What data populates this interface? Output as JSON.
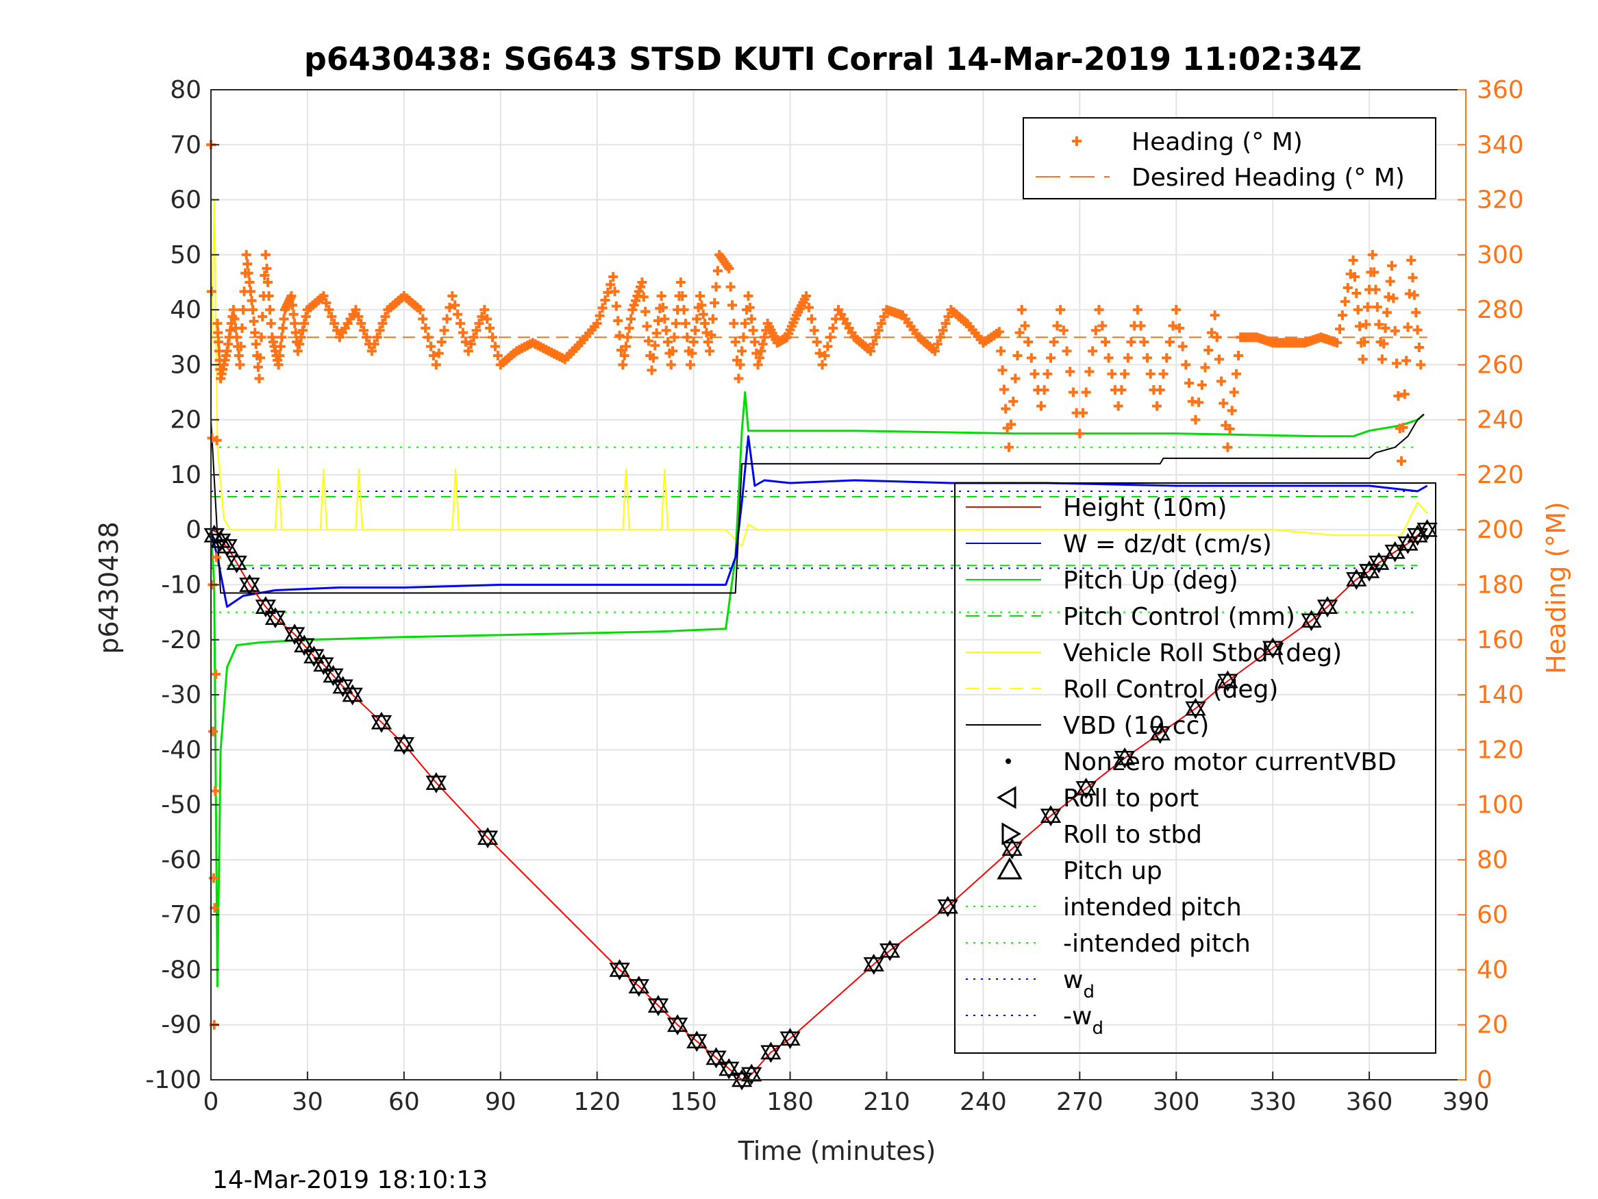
{
  "chart_data": {
    "type": "line",
    "title": "p6430438: SG643 STSD KUTI Corral 14-Mar-2019 11:02:34Z",
    "xlabel": "Time (minutes)",
    "ylabel": "p6430438",
    "y2label": "Heading (°M)",
    "timestamp": "14-Mar-2019 18:10:13",
    "xlim": [
      0,
      390
    ],
    "ylim": [
      -100,
      80
    ],
    "y2lim": [
      0,
      360
    ],
    "xticks": [
      0,
      30,
      60,
      90,
      120,
      150,
      180,
      210,
      240,
      270,
      300,
      330,
      360,
      390
    ],
    "yticks": [
      -100,
      -90,
      -80,
      -70,
      -60,
      -50,
      -40,
      -30,
      -20,
      -10,
      0,
      10,
      20,
      30,
      40,
      50,
      60,
      70,
      80
    ],
    "y2ticks": [
      0,
      20,
      40,
      60,
      80,
      100,
      120,
      140,
      160,
      180,
      200,
      220,
      240,
      260,
      280,
      300,
      320,
      340,
      360
    ],
    "grid": true,
    "colors": {
      "height": "#ff0000",
      "w": "#0000ff",
      "pitch": "#00dd00",
      "roll": "#ffff00",
      "vbd": "#000000",
      "heading": "#ff7216",
      "intended_pitch": "#00ff00",
      "wd": "#0000ff"
    },
    "legend_top": {
      "position": "top-right",
      "entries": [
        "Heading (° M)",
        "Desired Heading (° M)"
      ]
    },
    "legend_main": {
      "position": "right",
      "entries": [
        "Height (10m)",
        "W = dz/dt (cm/s)",
        "Pitch Up (deg)",
        "Pitch Control (mm)",
        "Vehicle Roll Stbd (deg)",
        "Roll Control (deg)",
        "VBD (10 cc)",
        "Nonzero motor currentVBD",
        "Roll to port",
        "Roll to stbd",
        "Pitch up",
        "intended pitch",
        "-intended pitch",
        "w",
        "-w"
      ],
      "subscripts": {
        "13": "d",
        "14": "d"
      }
    },
    "series": [
      {
        "name": "Height (10m)",
        "x": [
          0,
          2,
          4,
          6,
          8,
          10,
          12,
          17,
          20,
          26,
          29,
          32,
          35,
          38,
          41,
          44,
          53,
          60,
          70,
          86,
          127,
          133,
          139,
          145,
          151,
          157,
          161,
          165,
          168,
          174,
          180,
          206,
          211,
          229,
          249,
          261,
          272,
          284,
          295,
          306,
          316,
          330,
          342,
          347,
          356,
          360,
          363,
          368,
          372,
          375,
          378
        ],
        "y": [
          0,
          -0.5,
          -2.5,
          -4,
          -6,
          -8,
          -10,
          -14,
          -16,
          -19,
          -21,
          -23,
          -24.5,
          -26.5,
          -28.5,
          -30,
          -35,
          -39,
          -46,
          -56,
          -80,
          -83,
          -86.5,
          -90,
          -93,
          -96,
          -98,
          -100,
          -99,
          -95,
          -92.5,
          -79,
          -76.5,
          -68.5,
          -58,
          -52,
          -47,
          -41.5,
          -37,
          -32.5,
          -27.5,
          -21.5,
          -16.5,
          -14,
          -9,
          -7.5,
          -6,
          -4,
          -2.5,
          -1,
          0
        ]
      },
      {
        "name": "Vehicle Roll Stbd (deg)",
        "x": [
          0,
          1,
          2,
          4,
          6,
          20,
          21,
          22,
          23,
          30,
          34,
          35,
          36,
          40,
          45,
          46,
          47,
          55,
          60,
          70,
          75,
          76,
          77,
          85,
          125,
          128,
          129,
          130,
          140,
          141,
          142,
          145,
          160,
          165,
          167,
          170,
          180,
          210,
          245,
          280,
          300,
          330,
          350,
          360,
          370,
          375,
          378
        ],
        "y": [
          22,
          60,
          15,
          2,
          0,
          0,
          11,
          0,
          0,
          0,
          0,
          11,
          0,
          0,
          0,
          11,
          0,
          0,
          0,
          0,
          0,
          11,
          0,
          0,
          0,
          0,
          11,
          0,
          0,
          11,
          0,
          0,
          0,
          -3,
          1,
          0,
          0,
          0,
          0,
          0,
          0,
          0,
          -1,
          -1,
          -1,
          5,
          3
        ]
      },
      {
        "name": "Pitch Up (deg)",
        "x": [
          0,
          1,
          2,
          3,
          5,
          8,
          15,
          30,
          60,
          100,
          140,
          160,
          163,
          165,
          166,
          167,
          170,
          200,
          250,
          300,
          345,
          355,
          360,
          365,
          370,
          375,
          377
        ],
        "y": [
          0,
          -10,
          -83,
          -40,
          -25,
          -21,
          -20.5,
          -20,
          -19.5,
          -19,
          -18.5,
          -18,
          -5,
          18,
          25,
          18,
          18,
          18,
          17.5,
          17.5,
          17,
          17,
          18,
          18.5,
          19,
          20,
          21
        ]
      },
      {
        "name": "W = dz/dt (cm/s)",
        "x": [
          0,
          2,
          5,
          10,
          20,
          40,
          60,
          90,
          120,
          150,
          160,
          163,
          165,
          167,
          169,
          172,
          180,
          200,
          230,
          260,
          300,
          330,
          360,
          375,
          378
        ],
        "y": [
          0,
          -5,
          -14,
          -12,
          -11,
          -10.5,
          -10.5,
          -10,
          -10,
          -10,
          -10,
          -5,
          5,
          17,
          8,
          9,
          8.5,
          9,
          8.5,
          8.5,
          8,
          8,
          8,
          7,
          8
        ]
      },
      {
        "name": "VBD (10 cc)",
        "x": [
          0,
          3,
          5,
          50,
          100,
          140,
          163,
          164,
          165,
          170,
          200,
          240,
          295,
          296,
          320,
          360,
          362,
          368,
          372,
          375,
          377
        ],
        "y": [
          20,
          -11.5,
          -11.5,
          -11.5,
          -11.5,
          -11.5,
          -11.5,
          0,
          12,
          12,
          12,
          12,
          12,
          13,
          13,
          13,
          14,
          15,
          17,
          20,
          21
        ]
      },
      {
        "name": "Heading (° M)",
        "x": [
          0,
          1,
          2,
          3,
          5,
          7,
          9,
          11,
          13,
          15,
          17,
          19,
          21,
          23,
          25,
          27,
          30,
          35,
          40,
          45,
          50,
          55,
          60,
          65,
          70,
          75,
          80,
          85,
          90,
          95,
          100,
          105,
          110,
          115,
          120,
          125,
          128,
          131,
          134,
          137,
          140,
          143,
          146,
          149,
          152,
          155,
          158,
          161,
          164,
          167,
          170,
          173,
          176,
          179,
          182,
          185,
          190,
          195,
          200,
          205,
          210,
          215,
          220,
          225,
          230,
          235,
          240,
          245,
          248,
          252,
          258,
          264,
          270,
          276,
          282,
          288,
          294,
          300,
          306,
          312,
          316,
          320,
          325,
          330,
          335,
          340,
          345,
          350,
          355,
          358,
          361,
          364,
          367,
          370,
          373,
          376
        ],
        "y": [
          340,
          20,
          275,
          255,
          265,
          280,
          260,
          300,
          280,
          255,
          300,
          270,
          260,
          280,
          285,
          265,
          280,
          285,
          270,
          280,
          265,
          280,
          285,
          280,
          260,
          285,
          265,
          280,
          260,
          265,
          268,
          265,
          262,
          268,
          275,
          292,
          260,
          280,
          290,
          258,
          285,
          260,
          290,
          260,
          285,
          265,
          300,
          295,
          255,
          285,
          260,
          275,
          268,
          270,
          278,
          285,
          260,
          280,
          270,
          265,
          280,
          278,
          270,
          265,
          280,
          275,
          268,
          272,
          230,
          280,
          245,
          280,
          235,
          280,
          245,
          280,
          245,
          280,
          240,
          278,
          230,
          270,
          270,
          268,
          268,
          268,
          270,
          268,
          298,
          262,
          300,
          262,
          296,
          225,
          298,
          260
        ]
      },
      {
        "name": "Desired Heading (° M)",
        "x": [
          0,
          378
        ],
        "y": [
          270,
          270
        ]
      }
    ],
    "reference_lines": {
      "intended_pitch": 15,
      "neg_intended_pitch": -15,
      "w_d": 7,
      "neg_w_d": -7,
      "pitch_control_down": -6.5,
      "pitch_control_up": 6
    },
    "markers": {
      "x": [
        1,
        3,
        5,
        8,
        12,
        17,
        20,
        26,
        29,
        32,
        35,
        38,
        41,
        44,
        53,
        60,
        70,
        86,
        127,
        133,
        139,
        145,
        151,
        157,
        161,
        165,
        168,
        174,
        180,
        206,
        211,
        229,
        249,
        261,
        272,
        284,
        295,
        306,
        316,
        330,
        342,
        347,
        356,
        360,
        363,
        368,
        372,
        375,
        378
      ],
      "y": [
        -1,
        -2,
        -3,
        -6,
        -10,
        -14,
        -16,
        -19,
        -21,
        -23,
        -24.5,
        -26.5,
        -28.5,
        -30,
        -35,
        -39,
        -46,
        -56,
        -80,
        -83,
        -86.5,
        -90,
        -93,
        -96,
        -98,
        -100,
        -99,
        -95,
        -92.5,
        -79,
        -76.5,
        -68.5,
        -58,
        -52,
        -47,
        -41.5,
        -37,
        -32.5,
        -27.5,
        -21.5,
        -16.5,
        -14,
        -9,
        -7.5,
        -6,
        -4,
        -2.5,
        -1,
        0
      ]
    }
  }
}
